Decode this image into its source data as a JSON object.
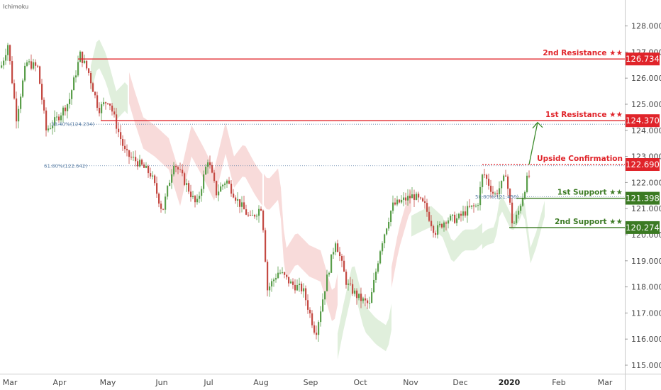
{
  "indicator_label": "Ichimoku",
  "colors": {
    "up": "#5a9e4b",
    "down": "#c44a43",
    "resistance": "#e0242a",
    "support": "#3b7a23",
    "cloud_bull": "#d5ead0",
    "cloud_bear": "#f6cfcd",
    "fib": "#5b7fa6",
    "arrow": "#3b8a2a"
  },
  "chart_data": {
    "type": "candlestick",
    "title": "",
    "ylim": [
      114.8,
      129.0
    ],
    "x_ticks": [
      "Mar",
      "Apr",
      "May",
      "Jun",
      "Jul",
      "Aug",
      "Sep",
      "Oct",
      "Nov",
      "Dec",
      "2020",
      "Feb",
      "Mar"
    ],
    "y_ticks": [
      "115.000",
      "116.000",
      "117.000",
      "118.000",
      "119.000",
      "120.000",
      "121.000",
      "122.000",
      "123.000",
      "124.000",
      "125.000",
      "126.000",
      "127.000",
      "128.000"
    ],
    "price_path": [
      [
        0,
        126.4
      ],
      [
        10,
        127.3
      ],
      [
        22,
        124.5
      ],
      [
        36,
        126.6
      ],
      [
        52,
        126.4
      ],
      [
        64,
        124.0
      ],
      [
        78,
        124.4
      ],
      [
        96,
        125.1
      ],
      [
        112,
        126.9
      ],
      [
        124,
        126.2
      ],
      [
        138,
        124.8
      ],
      [
        152,
        125.2
      ],
      [
        164,
        124.1
      ],
      [
        176,
        123.1
      ],
      [
        192,
        122.8
      ],
      [
        212,
        122.3
      ],
      [
        228,
        120.9
      ],
      [
        244,
        122.8
      ],
      [
        262,
        121.9
      ],
      [
        276,
        121.1
      ],
      [
        292,
        122.9
      ],
      [
        304,
        121.6
      ],
      [
        318,
        122.1
      ],
      [
        334,
        121.3
      ],
      [
        352,
        120.6
      ],
      [
        368,
        121.1
      ],
      [
        376,
        117.9
      ],
      [
        392,
        118.6
      ],
      [
        410,
        118.1
      ],
      [
        426,
        117.9
      ],
      [
        444,
        116.2
      ],
      [
        458,
        118.1
      ],
      [
        472,
        119.8
      ],
      [
        488,
        118.1
      ],
      [
        504,
        117.6
      ],
      [
        520,
        117.3
      ],
      [
        536,
        119.6
      ],
      [
        552,
        121.1
      ],
      [
        566,
        121.3
      ],
      [
        582,
        121.5
      ],
      [
        598,
        121.1
      ],
      [
        612,
        120.1
      ],
      [
        628,
        120.6
      ],
      [
        644,
        120.6
      ],
      [
        660,
        121.0
      ],
      [
        672,
        121.1
      ],
      [
        680,
        122.4
      ],
      [
        696,
        121.5
      ],
      [
        708,
        122.0
      ],
      [
        712,
        122.4
      ],
      [
        722,
        120.3
      ],
      [
        730,
        120.9
      ],
      [
        742,
        122.1
      ],
      [
        746,
        122.3
      ]
    ],
    "levels": [
      {
        "name": "2nd Resistance",
        "value": 126.734,
        "badge": "126.734",
        "label": "2nd Resistance ★★",
        "kind": "resistance",
        "start": 110,
        "style": "solid"
      },
      {
        "name": "1st Resistance",
        "value": 124.37,
        "badge": "124.370",
        "label": "1st Resistance ★★",
        "kind": "resistance",
        "start": 142,
        "style": "solid"
      },
      {
        "name": "Upside Confirmation",
        "value": 122.69,
        "badge": "122.690",
        "label": "Upside Confirmation",
        "kind": "resistance",
        "start": 680,
        "style": "dotted"
      },
      {
        "name": "1st Support",
        "value": 121.398,
        "badge": "121.398",
        "label": "1st Support ★★",
        "kind": "support",
        "start": 728,
        "style": "solid"
      },
      {
        "name": "2nd Support",
        "value": 120.274,
        "badge": "120.274",
        "label": "2nd Support ★★",
        "kind": "support",
        "start": 718,
        "style": "solid"
      }
    ],
    "fib_levels": [
      {
        "text": "38.40%(124.234)",
        "value": 124.234,
        "x": 82
      },
      {
        "text": "61.80%(122.642)",
        "value": 122.642,
        "x": 72
      },
      {
        "text": "50.00%(121.450)",
        "value": 121.45,
        "x": 680
      }
    ],
    "arrow": {
      "from": [
        746,
        122.69
      ],
      "to": [
        758,
        124.3
      ]
    }
  }
}
